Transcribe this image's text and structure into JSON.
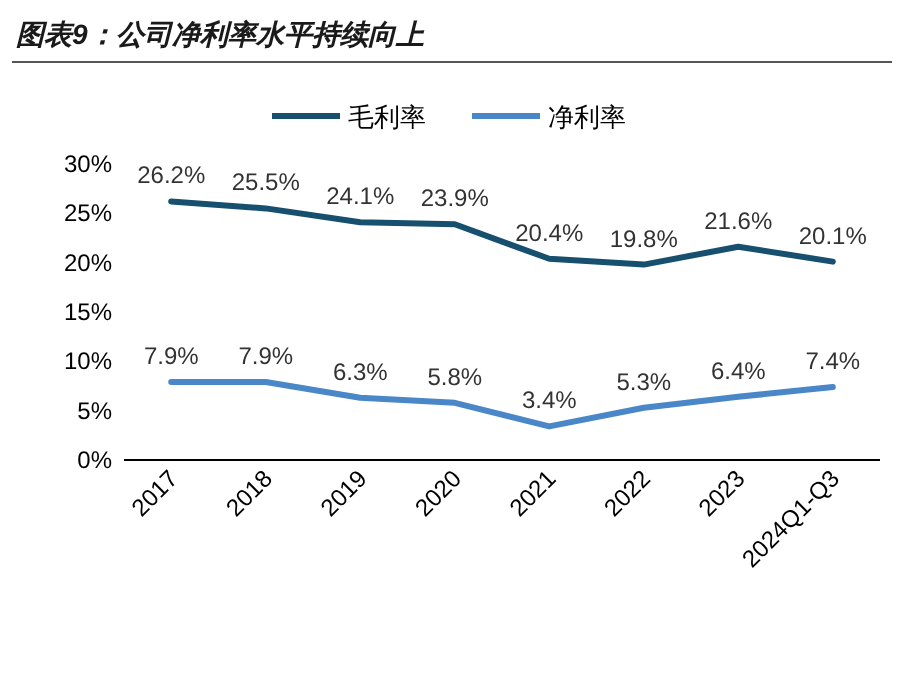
{
  "chart_data": {
    "type": "line",
    "title": "图表9：公司净利率水平持续向上",
    "categories": [
      "2017",
      "2018",
      "2019",
      "2020",
      "2021",
      "2022",
      "2023",
      "2024Q1-Q3"
    ],
    "series": [
      {
        "name": "毛利率",
        "color": "#174f6e",
        "values": [
          26.2,
          25.5,
          24.1,
          23.9,
          20.4,
          19.8,
          21.6,
          20.1
        ],
        "value_labels": [
          "26.2%",
          "25.5%",
          "24.1%",
          "23.9%",
          "20.4%",
          "19.8%",
          "21.6%",
          "20.1%"
        ]
      },
      {
        "name": "净利率",
        "color": "#4a87c8",
        "values": [
          7.9,
          7.9,
          6.3,
          5.8,
          3.4,
          5.3,
          6.4,
          7.4
        ],
        "value_labels": [
          "7.9%",
          "7.9%",
          "6.3%",
          "5.8%",
          "3.4%",
          "5.3%",
          "6.4%",
          "7.4%"
        ]
      }
    ],
    "ylim": [
      0,
      30
    ],
    "yticks": [
      {
        "value": 0,
        "label": "0%"
      },
      {
        "value": 5,
        "label": "5%"
      },
      {
        "value": 10,
        "label": "10%"
      },
      {
        "value": 15,
        "label": "15%"
      },
      {
        "value": 20,
        "label": "20%"
      },
      {
        "value": 25,
        "label": "25%"
      },
      {
        "value": 30,
        "label": "30%"
      }
    ],
    "legend": "top",
    "grid": false
  }
}
